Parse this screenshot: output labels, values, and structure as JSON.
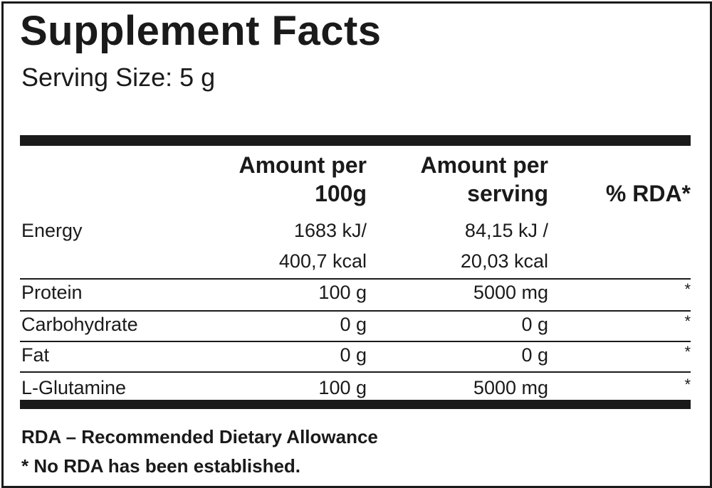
{
  "title": "Supplement Facts",
  "serving_size": "Serving Size: 5 g",
  "headers": {
    "per_100g": [
      "Amount per",
      "100g"
    ],
    "per_serving": [
      "Amount per",
      "serving"
    ],
    "rda": "% RDA*"
  },
  "energy": {
    "label": "Energy",
    "per_100g": [
      "1683 kJ/",
      "400,7 kcal"
    ],
    "per_serving": [
      "84,15 kJ /",
      "20,03 kcal"
    ]
  },
  "rows": [
    {
      "label": "Protein",
      "per_100g": "100 g",
      "per_serving": "5000 mg",
      "rda": "*"
    },
    {
      "label": "Carbohydrate",
      "per_100g": "0 g",
      "per_serving": "0 g",
      "rda": "*"
    },
    {
      "label": "Fat",
      "per_100g": "0 g",
      "per_serving": "0 g",
      "rda": "*"
    },
    {
      "label": "L-Glutamine",
      "per_100g": "100 g",
      "per_serving": "5000 mg",
      "rda": "*"
    }
  ],
  "footnotes": [
    "RDA – Recommended Dietary Allowance",
    "* No RDA has been established."
  ]
}
